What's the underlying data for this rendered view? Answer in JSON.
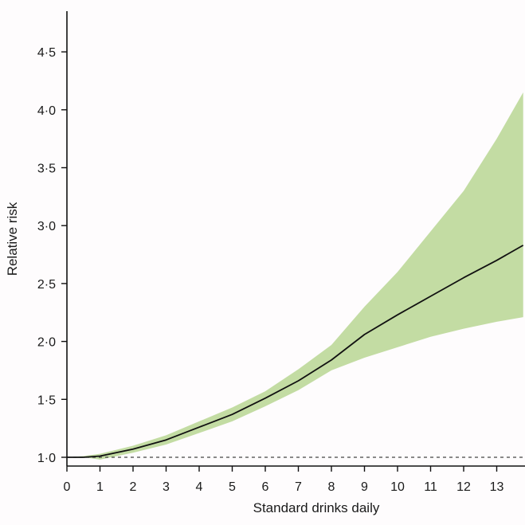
{
  "colors": {
    "background": "#fefcfd",
    "band": "#c3dca3",
    "line": "#111111",
    "axis": "#111111",
    "reference": "#444444"
  },
  "chart_data": {
    "type": "line",
    "xlabel": "Standard drinks daily",
    "ylabel": "Relative risk",
    "xlim": [
      0,
      14
    ],
    "ylim": [
      0.95,
      4.9
    ],
    "x_ticks": [
      0,
      1,
      2,
      3,
      4,
      5,
      6,
      7,
      8,
      9,
      10,
      11,
      12,
      13
    ],
    "x_tick_labels": [
      "0",
      "1",
      "2",
      "3",
      "4",
      "5",
      "6",
      "7",
      "8",
      "9",
      "10",
      "11",
      "12",
      "13"
    ],
    "y_ticks": [
      1.0,
      1.5,
      2.0,
      2.5,
      3.0,
      3.5,
      4.0,
      4.5
    ],
    "y_tick_labels": [
      "1·0",
      "1·5",
      "2·0",
      "2·5",
      "3·0",
      "3·5",
      "4·0",
      "4·5"
    ],
    "reference_line": {
      "y": 1.0,
      "style": "dashed"
    },
    "series": [
      {
        "x": [
          0,
          0.5,
          1,
          2,
          3,
          4,
          5,
          6,
          7,
          8,
          9,
          10,
          11,
          12,
          13,
          13.8
        ],
        "y": [
          1.0,
          1.0,
          1.01,
          1.07,
          1.15,
          1.26,
          1.37,
          1.51,
          1.66,
          1.84,
          2.06,
          2.23,
          2.39,
          2.55,
          2.7,
          2.83
        ],
        "lower": [
          1.0,
          1.0,
          0.98,
          1.04,
          1.11,
          1.21,
          1.31,
          1.44,
          1.58,
          1.75,
          1.86,
          1.95,
          2.04,
          2.11,
          2.17,
          2.21
        ],
        "upper": [
          1.0,
          1.01,
          1.03,
          1.1,
          1.19,
          1.31,
          1.43,
          1.57,
          1.76,
          1.97,
          2.3,
          2.6,
          2.95,
          3.3,
          3.75,
          4.15
        ]
      }
    ],
    "grid": false,
    "legend": "none"
  }
}
